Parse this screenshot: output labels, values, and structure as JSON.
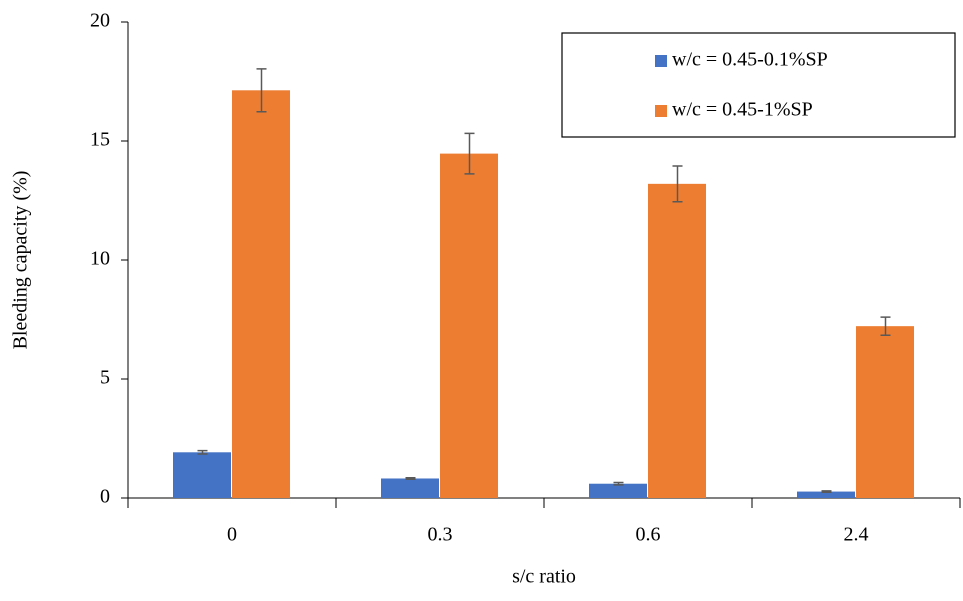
{
  "chart_data": {
    "type": "bar",
    "x_label": "s/c ratio",
    "y_label": "Bleeding capacity (%)",
    "categories": [
      "0",
      "0.3",
      "0.6",
      "2.4"
    ],
    "series": [
      {
        "name": "w/c = 0.45-0.1%SP",
        "color": "#4472c4",
        "values": [
          1.92,
          0.82,
          0.6,
          0.27
        ],
        "errors": [
          0.07,
          0.03,
          0.05,
          0.03
        ]
      },
      {
        "name": "w/c = 0.45-1%SP",
        "color": "#ed7d31",
        "values": [
          17.13,
          14.47,
          13.2,
          7.22
        ],
        "errors": [
          0.9,
          0.85,
          0.75,
          0.38
        ]
      }
    ],
    "ylim": [
      0,
      20
    ],
    "yticks": [
      0,
      5,
      10,
      15,
      20
    ],
    "grid": false,
    "legend": "top-right"
  }
}
